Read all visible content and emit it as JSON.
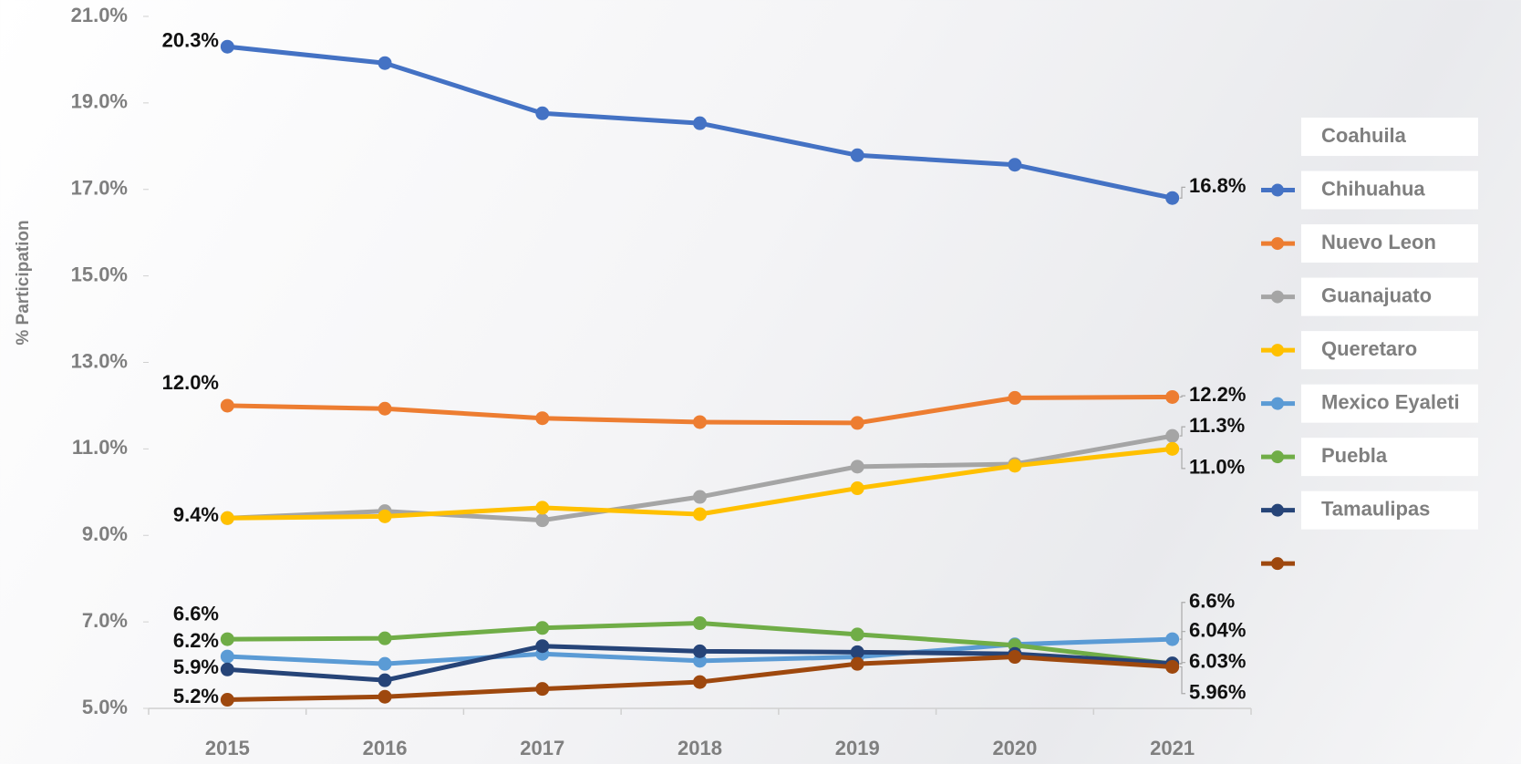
{
  "chart_data": {
    "type": "line",
    "y_label": "% Participation",
    "categories": [
      "2015",
      "2016",
      "2017",
      "2018",
      "2019",
      "2020",
      "2021"
    ],
    "ylim": [
      5,
      21
    ],
    "yticks": [
      {
        "value": 5,
        "label": "5.0%"
      },
      {
        "value": 7,
        "label": "7.0%"
      },
      {
        "value": 9,
        "label": "9.0%"
      },
      {
        "value": 11,
        "label": "11.0%"
      },
      {
        "value": 13,
        "label": "13.0%"
      },
      {
        "value": 15,
        "label": "15.0%"
      },
      {
        "value": 17,
        "label": "17.0%"
      },
      {
        "value": 19,
        "label": "19.0%"
      },
      {
        "value": 21,
        "label": "21.0%"
      }
    ],
    "legend_first_label": "Coahuila",
    "series": [
      {
        "name": "Chihuahua",
        "color": "#4472c4",
        "values": [
          20.3,
          19.92,
          18.76,
          18.53,
          17.79,
          17.57,
          16.8
        ],
        "value_labels": [
          "20.3%",
          null,
          null,
          null,
          null,
          null,
          "16.8%"
        ]
      },
      {
        "name": "Nuevo Leon",
        "color": "#ed7d31",
        "values": [
          12.0,
          11.93,
          11.71,
          11.62,
          11.6,
          12.18,
          12.2
        ],
        "value_labels": [
          "12.0%",
          null,
          null,
          null,
          null,
          null,
          "12.2%"
        ]
      },
      {
        "name": "Guanajuato",
        "color": "#a5a5a5",
        "values": [
          9.4,
          9.56,
          9.35,
          9.89,
          10.59,
          10.65,
          11.3
        ],
        "value_labels": [
          null,
          null,
          null,
          null,
          null,
          null,
          "11.3%"
        ]
      },
      {
        "name": "Queretaro",
        "color": "#ffc000",
        "values": [
          9.4,
          9.44,
          9.64,
          9.49,
          10.09,
          10.61,
          11.0
        ],
        "value_labels": [
          "9.4%",
          null,
          null,
          null,
          null,
          null,
          "11.0%"
        ]
      },
      {
        "name": "Mexico Eyaleti",
        "color": "#5b9bd5",
        "values": [
          6.2,
          6.03,
          6.26,
          6.1,
          6.19,
          6.48,
          6.6
        ],
        "value_labels": [
          "6.2%",
          null,
          null,
          null,
          null,
          null,
          "6.6%"
        ]
      },
      {
        "name": "Puebla",
        "color": "#70ad47",
        "values": [
          6.6,
          6.62,
          6.86,
          6.97,
          6.71,
          6.46,
          6.03
        ],
        "value_labels": [
          "6.6%",
          null,
          null,
          null,
          null,
          null,
          "6.03%"
        ]
      },
      {
        "name": "Tamaulipas",
        "color": "#264478",
        "values": [
          5.9,
          5.65,
          6.44,
          6.32,
          6.3,
          6.26,
          6.04
        ],
        "value_labels": [
          "5.9%",
          null,
          null,
          null,
          null,
          null,
          "6.04%"
        ]
      },
      {
        "name": null,
        "color": "#9e480e",
        "values": [
          5.2,
          5.27,
          5.45,
          5.61,
          6.03,
          6.19,
          5.96
        ],
        "value_labels": [
          "5.2%",
          null,
          null,
          null,
          null,
          null,
          "5.96%"
        ]
      }
    ]
  }
}
